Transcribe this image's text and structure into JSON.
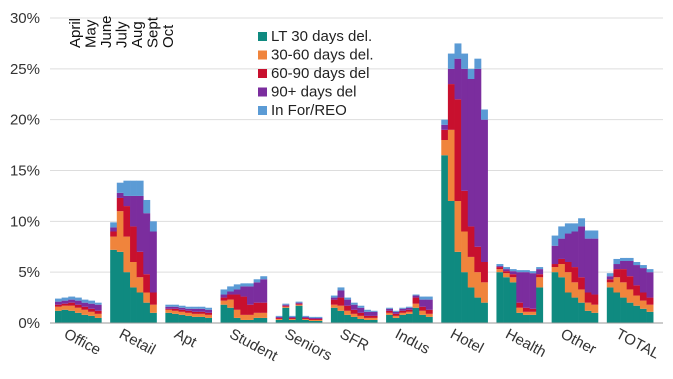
{
  "chart_data": {
    "type": "bar",
    "stacked": true,
    "grid": true,
    "legend_position": "top-center",
    "ylim": [
      0,
      30
    ],
    "yticks": [
      0,
      5,
      10,
      15,
      20,
      25,
      30
    ],
    "ytick_labels": [
      "0%",
      "5%",
      "10%",
      "15%",
      "20%",
      "25%",
      "30%"
    ],
    "month_labels": [
      "April",
      "May",
      "June",
      "July",
      "Aug",
      "Sept",
      "Oct"
    ],
    "categories": [
      "Office",
      "Retail",
      "Apt",
      "Student",
      "Seniors",
      "SFR",
      "Indus",
      "Hotel",
      "Health",
      "Other",
      "TOTAL"
    ],
    "series": [
      {
        "name": "LT 30 days del.",
        "color": "#0f8a80"
      },
      {
        "name": "30-60 days del.",
        "color": "#f0843c"
      },
      {
        "name": "60-90 days del",
        "color": "#c8102e"
      },
      {
        "name": "90+ days del",
        "color": "#7b2d9e"
      },
      {
        "name": "In For/REO",
        "color": "#5b9bd5"
      }
    ],
    "groups": [
      {
        "category": "Office",
        "bars": [
          [
            1.2,
            0.4,
            0.2,
            0.3,
            0.3
          ],
          [
            1.3,
            0.4,
            0.2,
            0.3,
            0.3
          ],
          [
            1.2,
            0.5,
            0.3,
            0.3,
            0.3
          ],
          [
            1.0,
            0.5,
            0.3,
            0.4,
            0.3
          ],
          [
            0.8,
            0.5,
            0.3,
            0.4,
            0.3
          ],
          [
            0.7,
            0.4,
            0.3,
            0.5,
            0.3
          ],
          [
            0.5,
            0.4,
            0.3,
            0.6,
            0.2
          ]
        ]
      },
      {
        "category": "Retail",
        "bars": [
          [
            7.2,
            1.3,
            0.5,
            0.4,
            0.5
          ],
          [
            7.0,
            4.0,
            1.3,
            0.5,
            1.0
          ],
          [
            5.0,
            3.5,
            3.0,
            1.0,
            1.5
          ],
          [
            3.5,
            2.5,
            3.5,
            3.0,
            1.5
          ],
          [
            3.0,
            1.5,
            2.5,
            5.5,
            1.5
          ],
          [
            2.0,
            1.0,
            1.8,
            6.0,
            1.3
          ],
          [
            1.0,
            0.8,
            1.2,
            6.0,
            1.0
          ]
        ]
      },
      {
        "category": "Apt",
        "bars": [
          [
            1.0,
            0.3,
            0.1,
            0.2,
            0.2
          ],
          [
            0.9,
            0.3,
            0.2,
            0.2,
            0.2
          ],
          [
            0.8,
            0.3,
            0.2,
            0.2,
            0.2
          ],
          [
            0.7,
            0.3,
            0.2,
            0.2,
            0.2
          ],
          [
            0.6,
            0.3,
            0.2,
            0.3,
            0.2
          ],
          [
            0.6,
            0.3,
            0.2,
            0.3,
            0.2
          ],
          [
            0.5,
            0.3,
            0.2,
            0.3,
            0.2
          ]
        ]
      },
      {
        "category": "Student",
        "bars": [
          [
            1.8,
            0.4,
            0.3,
            0.3,
            0.5
          ],
          [
            1.5,
            0.8,
            0.5,
            0.3,
            0.5
          ],
          [
            0.5,
            0.8,
            1.5,
            0.5,
            0.5
          ],
          [
            0.3,
            0.5,
            1.8,
            1.0,
            0.3
          ],
          [
            0.3,
            0.5,
            1.0,
            1.8,
            0.3
          ],
          [
            0.5,
            0.5,
            1.0,
            2.0,
            0.3
          ],
          [
            0.5,
            0.5,
            1.0,
            2.3,
            0.3
          ]
        ]
      },
      {
        "category": "Seniors",
        "bars": [
          [
            0.3,
            0.1,
            0.1,
            0.1,
            0.1
          ],
          [
            1.5,
            0.1,
            0.1,
            0.1,
            0.1
          ],
          [
            0.3,
            0.1,
            0.1,
            0.1,
            0.1
          ],
          [
            1.7,
            0.1,
            0.1,
            0.1,
            0.1
          ],
          [
            0.3,
            0.1,
            0.1,
            0.1,
            0.1
          ],
          [
            0.2,
            0.1,
            0.1,
            0.1,
            0.1
          ],
          [
            0.2,
            0.1,
            0.1,
            0.1,
            0.1
          ]
        ]
      },
      {
        "category": "SFR",
        "bars": [
          [
            1.5,
            0.3,
            0.5,
            0.2,
            0.2
          ],
          [
            1.2,
            0.5,
            0.8,
            0.7,
            0.3
          ],
          [
            0.8,
            0.4,
            0.5,
            0.6,
            0.2
          ],
          [
            0.6,
            0.3,
            0.4,
            0.5,
            0.2
          ],
          [
            0.4,
            0.3,
            0.3,
            0.5,
            0.2
          ],
          [
            0.3,
            0.2,
            0.2,
            0.4,
            0.2
          ],
          [
            0.3,
            0.2,
            0.2,
            0.4,
            0.1
          ]
        ]
      },
      {
        "category": "Indus",
        "bars": [
          [
            0.8,
            0.2,
            0.2,
            0.2,
            0.1
          ],
          [
            0.5,
            0.2,
            0.2,
            0.2,
            0.1
          ],
          [
            0.8,
            0.2,
            0.2,
            0.2,
            0.1
          ],
          [
            0.9,
            0.2,
            0.2,
            0.2,
            0.1
          ],
          [
            1.5,
            0.4,
            0.6,
            0.2,
            0.1
          ],
          [
            0.8,
            0.4,
            0.4,
            0.7,
            0.3
          ],
          [
            0.6,
            0.3,
            0.4,
            1.0,
            0.3
          ]
        ]
      },
      {
        "category": "Hotel",
        "bars": [
          [
            16.5,
            1.5,
            1.0,
            0.5,
            0.5
          ],
          [
            12.0,
            7.0,
            4.5,
            1.5,
            1.5
          ],
          [
            7.0,
            5.0,
            10.0,
            4.0,
            1.5
          ],
          [
            5.0,
            4.0,
            4.0,
            12.0,
            1.5
          ],
          [
            3.5,
            3.0,
            3.0,
            14.5,
            1.0
          ],
          [
            2.5,
            2.5,
            2.5,
            17.5,
            1.0
          ],
          [
            2.0,
            2.0,
            2.0,
            14.0,
            1.0
          ]
        ]
      },
      {
        "category": "Health",
        "bars": [
          [
            5.0,
            0.3,
            0.2,
            0.1,
            0.2
          ],
          [
            4.5,
            0.4,
            0.2,
            0.2,
            0.2
          ],
          [
            4.0,
            0.5,
            0.3,
            0.3,
            0.2
          ],
          [
            1.0,
            0.5,
            0.5,
            3.0,
            0.2
          ],
          [
            0.8,
            0.3,
            0.4,
            3.5,
            0.2
          ],
          [
            0.8,
            0.3,
            0.3,
            3.5,
            0.2
          ],
          [
            3.5,
            1.0,
            0.3,
            0.5,
            0.2
          ]
        ]
      },
      {
        "category": "Other",
        "bars": [
          [
            5.0,
            0.5,
            0.3,
            1.8,
            1.0
          ],
          [
            4.5,
            1.3,
            0.5,
            2.0,
            1.2
          ],
          [
            3.0,
            2.0,
            1.0,
            2.8,
            1.0
          ],
          [
            2.5,
            1.5,
            1.5,
            3.5,
            0.8
          ],
          [
            2.0,
            1.3,
            1.2,
            5.0,
            0.8
          ],
          [
            1.2,
            0.8,
            1.0,
            5.3,
            0.8
          ],
          [
            1.0,
            0.8,
            1.0,
            5.5,
            0.8
          ]
        ]
      },
      {
        "category": "TOTAL",
        "bars": [
          [
            3.5,
            0.5,
            0.3,
            0.3,
            0.3
          ],
          [
            3.0,
            1.5,
            0.8,
            0.5,
            0.5
          ],
          [
            2.5,
            1.5,
            1.3,
            0.8,
            0.3
          ],
          [
            2.0,
            1.3,
            1.3,
            1.5,
            0.3
          ],
          [
            1.7,
            1.0,
            1.0,
            2.0,
            0.3
          ],
          [
            1.4,
            0.8,
            0.8,
            2.4,
            0.3
          ],
          [
            1.1,
            0.7,
            0.7,
            2.5,
            0.3
          ]
        ]
      }
    ]
  }
}
